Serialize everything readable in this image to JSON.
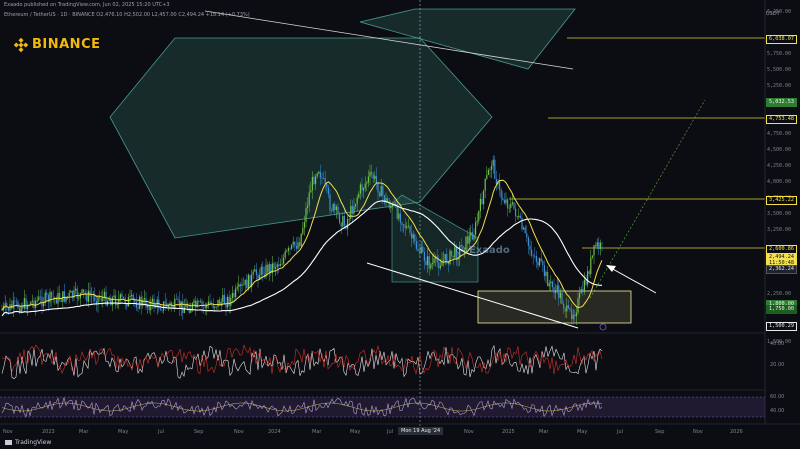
{
  "header": {
    "publisher": "Exaado published on TradingView.com, Jun 02, 2025 15:20 UTC+3",
    "symbol_line": "Ethereum / TetherUS · 1D · BINANCE  O2,476.10 H2,502.00 L2,457.00 C2,494.24 +18.14 (+0.73%)"
  },
  "brand": {
    "name": "BINANCE",
    "color": "#f0b90b"
  },
  "watermark": "Exaado",
  "currency": "USDT",
  "price_axis": {
    "ticks": [
      "6,250.00",
      "5,750.00",
      "5,500.00",
      "5,250.00",
      "4,750.00",
      "4,500.00",
      "4,250.00",
      "4,000.00",
      "3,750.00",
      "3,500.00",
      "3,250.00",
      "2,750.00",
      "2,250.00",
      "2,000.00",
      "1,750.00",
      "1,500.00"
    ]
  },
  "price_tags": [
    {
      "label": "6,038.07",
      "style": "yellow-outline"
    },
    {
      "label": "5,032.53",
      "style": "green"
    },
    {
      "label": "4,753.48",
      "style": "yellow-outline"
    },
    {
      "label": "3,425.22",
      "style": "yellow-outline"
    },
    {
      "label": "2,600.86",
      "style": "yellow-outline"
    },
    {
      "label": "2,494.24",
      "style": "yellow"
    },
    {
      "label": "11:50:48",
      "style": "yellow"
    },
    {
      "label": "2,362.24",
      "style": "dark"
    },
    {
      "label": "1,800.00",
      "style": "green"
    },
    {
      "label": "1,750.00",
      "style": "green-dark"
    },
    {
      "label": "1,500.29",
      "style": "white-outline"
    }
  ],
  "time_axis": {
    "labels": [
      "Nov",
      "2023",
      "Mar",
      "May",
      "Jul",
      "Sep",
      "Nov",
      "2024",
      "Mar",
      "May",
      "Jul",
      "Nov",
      "2025",
      "Mar",
      "May",
      "Jul",
      "Sep",
      "Nov",
      "2026"
    ],
    "crosshair_label": "Mon 19 Aug '24"
  },
  "indicators": {
    "upper_ticks": [
      "40.00",
      "20.00"
    ],
    "lower_ticks": [
      "60.00",
      "40.00"
    ]
  },
  "footer": {
    "brand": "TradingView"
  },
  "colors": {
    "background": "#0b0d12",
    "up": "#6fc24a",
    "down": "#3c8fd6",
    "ma_fast": "#f2e04d",
    "ma_slow": "#ffffff",
    "zone": "#4fb7a3",
    "box": "#fff59d"
  }
}
